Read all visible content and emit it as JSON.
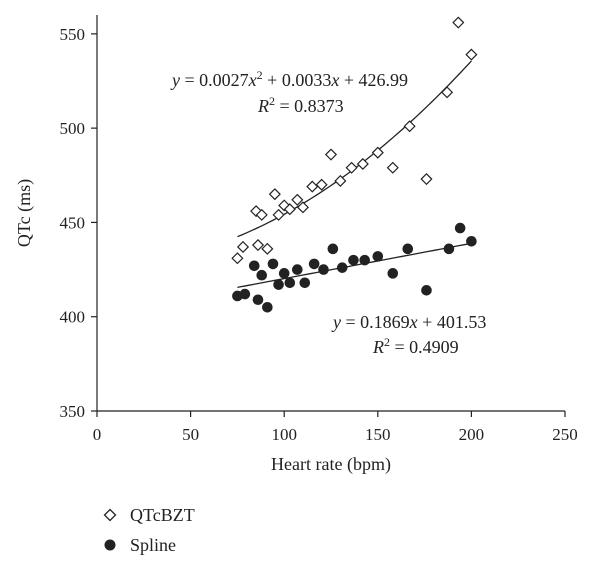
{
  "chart_data": {
    "type": "scatter",
    "xlabel": "Heart rate (bpm)",
    "ylabel": "QTc (ms)",
    "xlim": [
      0,
      250
    ],
    "ylim": [
      350,
      560
    ],
    "xticks": [
      0,
      50,
      100,
      150,
      200,
      250
    ],
    "yticks": [
      350,
      400,
      450,
      500,
      550
    ],
    "grid": false,
    "legend_position": "bottom-left",
    "series": [
      {
        "name": "QTcBZT",
        "marker": "open-diamond",
        "color": "#222222",
        "points": [
          [
            75,
            431
          ],
          [
            78,
            437
          ],
          [
            85,
            456
          ],
          [
            86,
            438
          ],
          [
            88,
            454
          ],
          [
            91,
            436
          ],
          [
            95,
            465
          ],
          [
            97,
            454
          ],
          [
            100,
            459
          ],
          [
            103,
            457
          ],
          [
            107,
            462
          ],
          [
            110,
            458
          ],
          [
            115,
            469
          ],
          [
            120,
            470
          ],
          [
            125,
            486
          ],
          [
            130,
            472
          ],
          [
            136,
            479
          ],
          [
            142,
            481
          ],
          [
            150,
            487
          ],
          [
            158,
            479
          ],
          [
            167,
            501
          ],
          [
            176,
            473
          ],
          [
            187,
            519
          ],
          [
            193,
            556
          ],
          [
            200,
            539
          ]
        ],
        "trendline": {
          "kind": "quadratic",
          "coefficients": [
            0.0027,
            0.0033,
            426.99
          ],
          "x_range": [
            75,
            200
          ]
        },
        "equation_label": {
          "lhs": "y",
          "a": "0.0027",
          "b": "0.0033",
          "c": "426.99",
          "r2": "0.8373"
        }
      },
      {
        "name": "Spline",
        "marker": "filled-circle",
        "color": "#222222",
        "points": [
          [
            75,
            411
          ],
          [
            79,
            412
          ],
          [
            84,
            427
          ],
          [
            86,
            409
          ],
          [
            88,
            422
          ],
          [
            91,
            405
          ],
          [
            94,
            428
          ],
          [
            97,
            417
          ],
          [
            100,
            423
          ],
          [
            103,
            418
          ],
          [
            107,
            425
          ],
          [
            111,
            418
          ],
          [
            116,
            428
          ],
          [
            121,
            425
          ],
          [
            126,
            436
          ],
          [
            131,
            426
          ],
          [
            137,
            430
          ],
          [
            143,
            430
          ],
          [
            150,
            432
          ],
          [
            158,
            423
          ],
          [
            166,
            436
          ],
          [
            176,
            414
          ],
          [
            188,
            436
          ],
          [
            194,
            447
          ],
          [
            200,
            440
          ]
        ],
        "trendline": {
          "kind": "linear",
          "coefficients": [
            0.1869,
            401.53
          ],
          "x_range": [
            75,
            200
          ]
        },
        "equation_label": {
          "lhs": "y",
          "slope": "0.1869",
          "intercept": "401.53",
          "r2": "0.4909"
        }
      }
    ]
  }
}
